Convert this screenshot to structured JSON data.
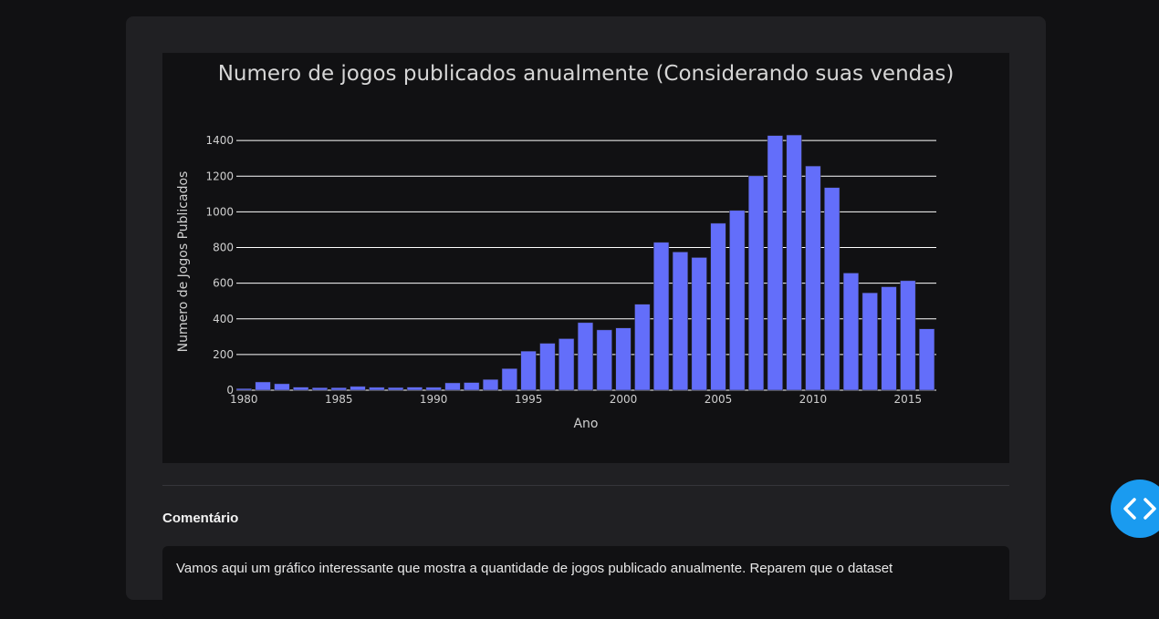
{
  "chart_data": {
    "type": "bar",
    "title": "Numero de jogos publicados anualmente (Considerando suas vendas)",
    "xlabel": "Ano",
    "ylabel": "Numero de Jogos Publicados",
    "x": [
      1980,
      1981,
      1982,
      1983,
      1984,
      1985,
      1986,
      1987,
      1988,
      1989,
      1990,
      1991,
      1992,
      1993,
      1994,
      1995,
      1996,
      1997,
      1998,
      1999,
      2000,
      2001,
      2002,
      2003,
      2004,
      2005,
      2006,
      2007,
      2008,
      2009,
      2010,
      2011,
      2012,
      2013,
      2014,
      2015,
      2016
    ],
    "values": [
      9,
      46,
      36,
      17,
      14,
      14,
      21,
      16,
      15,
      17,
      16,
      41,
      43,
      60,
      121,
      219,
      263,
      289,
      379,
      338,
      349,
      482,
      829,
      775,
      744,
      936,
      1008,
      1202,
      1428,
      1431,
      1257,
      1136,
      657,
      546,
      580,
      614,
      344
    ],
    "xticks": [
      "1980",
      "1985",
      "1990",
      "1995",
      "2000",
      "2005",
      "2010",
      "2015"
    ],
    "yticks": [
      "0",
      "200",
      "400",
      "600",
      "800",
      "1000",
      "1200",
      "1400"
    ],
    "xlim": [
      1979.6,
      2016.5
    ],
    "ylim": [
      0,
      1503
    ],
    "grid": true,
    "bar_color": "#636efa"
  },
  "section": {
    "title": "Comentário",
    "comment": "Vamos aqui um gráfico interessante que mostra a quantidade de jogos publicado anualmente. Reparem que o dataset"
  },
  "toolbar": {
    "code_toggle_icon": "code-brackets-icon"
  }
}
